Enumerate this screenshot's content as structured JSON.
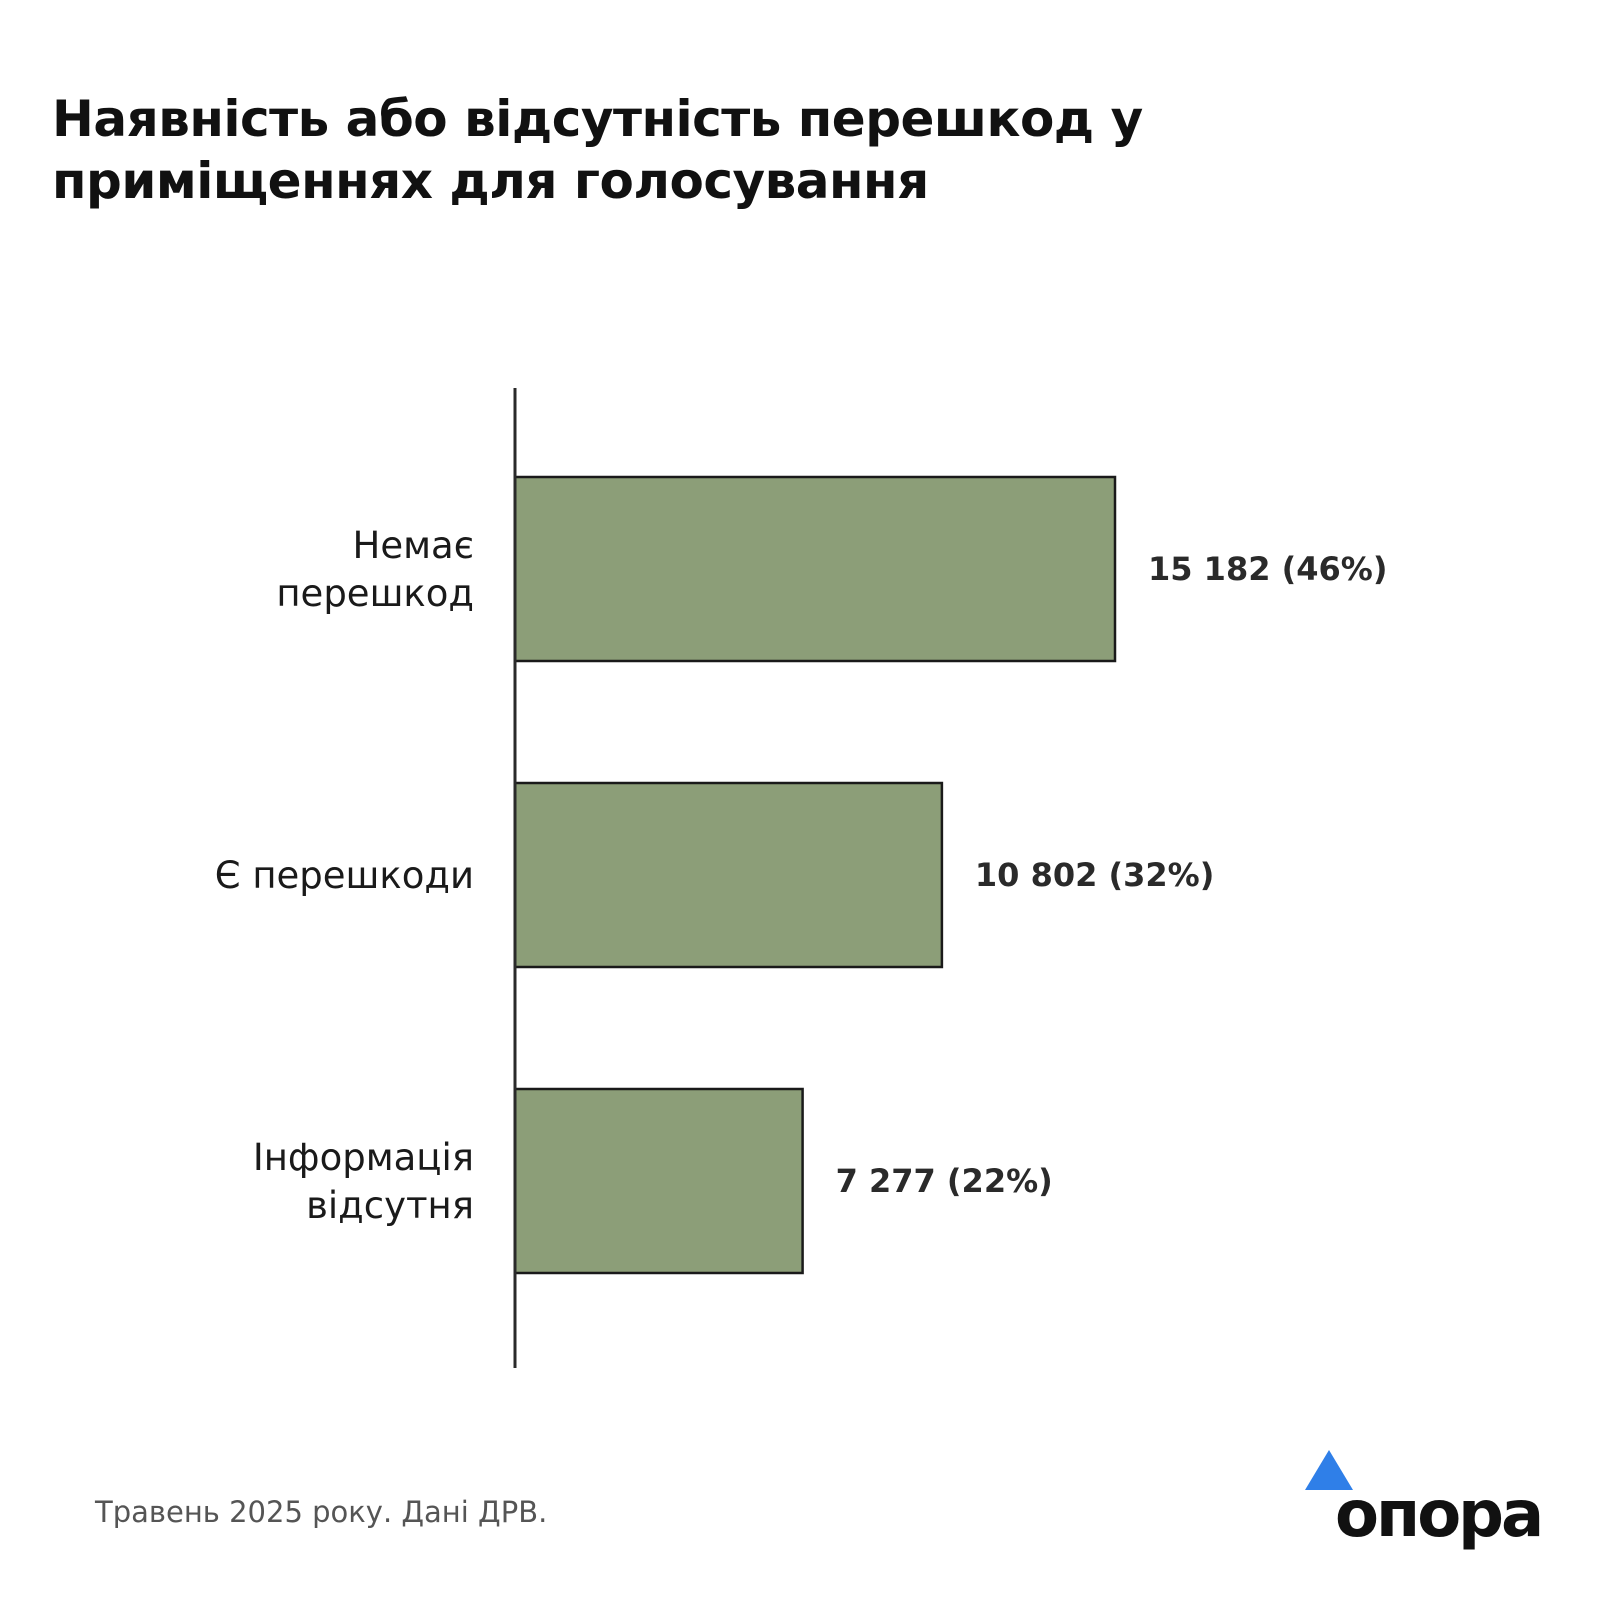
{
  "title": "Наявність або відсутність перешкод у приміщеннях для голосування",
  "footnote": "Травень 2025 року. Дані ДРВ.",
  "logo": {
    "text": "опора",
    "mark_icon": "blue-triangle-icon",
    "mark_color": "#2f7fe8"
  },
  "chart_data": {
    "type": "bar",
    "orientation": "horizontal",
    "categories": [
      [
        "Немає",
        "перешкод"
      ],
      [
        "Є перешкоди"
      ],
      [
        "Інформація",
        "відсутня"
      ]
    ],
    "values": [
      15182,
      10802,
      7277
    ],
    "value_labels": [
      "15 182 (46%)",
      "10 802 (32%)",
      "7 277 (22%)"
    ],
    "percentages": [
      46,
      32,
      22
    ],
    "xlim": [
      0,
      15182
    ],
    "bar_color": "#8c9e78",
    "bar_edge_color": "#1a1a1a",
    "grid": false
  }
}
